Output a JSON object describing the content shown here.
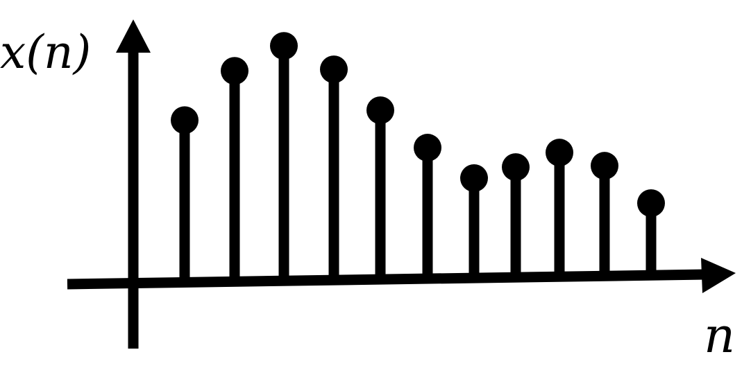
{
  "chart_data": {
    "type": "stem",
    "x": [
      1,
      2,
      3,
      4,
      5,
      6,
      7,
      8,
      9,
      10,
      11
    ],
    "values": [
      2.35,
      3.05,
      3.4,
      3.05,
      2.45,
      1.9,
      1.45,
      1.6,
      1.8,
      1.6,
      1.05
    ],
    "xlabel": "n",
    "ylabel": "x(n)",
    "ylim": [
      -0.95,
      3.8
    ],
    "grid": false,
    "color": "#000000"
  }
}
